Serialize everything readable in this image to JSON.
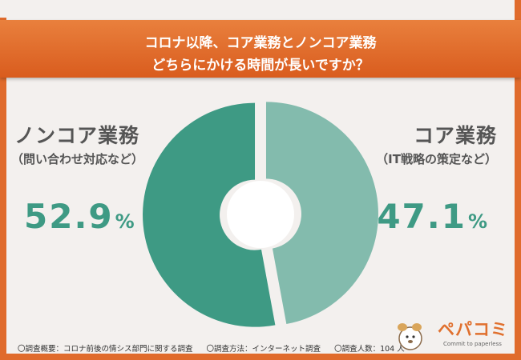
{
  "header": {
    "line1": "コロナ以降、コア業務とノンコア業務",
    "line2": "どちらにかける時間が長いですか？"
  },
  "labels": {
    "noncore_title": "ノンコア業務",
    "noncore_sub": "（問い合わせ対応など）",
    "core_title": "コア業務",
    "core_sub": "（IT戦略の策定など）"
  },
  "percent": {
    "noncore_value": "52.9",
    "core_value": "47.1",
    "unit": "%"
  },
  "footer": {
    "survey_overview": "〇調査概要：コロナ前後の情シス部門に関する調査",
    "survey_method": "〇調査方法：インターネット調査",
    "survey_count": "〇調査人数：104 人"
  },
  "logo": {
    "name": "ペパコミ",
    "tagline": "Commit to paperless"
  },
  "colors": {
    "accent": "#E06B2C",
    "noncore": "#3E9A84",
    "core": "#83BBAD",
    "background": "#F3F0EE"
  },
  "chart_data": {
    "type": "pie",
    "categories": [
      "ノンコア業務",
      "コア業務"
    ],
    "values": [
      52.9,
      47.1
    ],
    "title": "コロナ以降、コア業務とノンコア業務どちらにかける時間が長いですか？",
    "legend": "side-labels"
  }
}
